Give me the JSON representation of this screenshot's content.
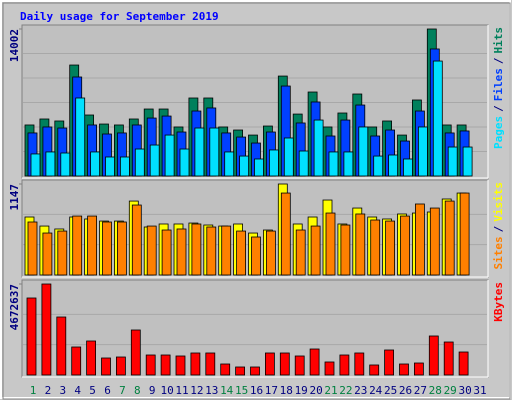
{
  "title": "Daily usage for September 2019",
  "legend_separator": "/",
  "chart_data": [
    {
      "type": "bar",
      "ylim": [
        0,
        14002
      ],
      "yticks": [
        14002
      ],
      "series": [
        {
          "name": "Hits",
          "color": "#00805c",
          "values": [
            4860,
            5430,
            5240,
            10570,
            5810,
            4950,
            4860,
            5430,
            6380,
            6380,
            4670,
            7430,
            7430,
            4670,
            4380,
            3900,
            4760,
            9520,
            5900,
            8000,
            4670,
            6000,
            7810,
            4670,
            5240,
            3900,
            7240,
            14002,
            4860,
            4860,
            null
          ]
        },
        {
          "name": "Files",
          "color": "#0040ff",
          "values": [
            4100,
            4670,
            4570,
            9430,
            4860,
            4000,
            4100,
            4860,
            5520,
            5710,
            4190,
            6190,
            6480,
            4100,
            3710,
            3140,
            4190,
            8570,
            5050,
            7050,
            3810,
            5330,
            6760,
            3810,
            4380,
            3330,
            6190,
            12100,
            4100,
            4290,
            null
          ]
        },
        {
          "name": "Pages",
          "color": "#00e0ff",
          "values": [
            2100,
            2290,
            2190,
            7430,
            2290,
            1810,
            1810,
            2570,
            2950,
            3900,
            2570,
            4570,
            4570,
            2290,
            1900,
            1620,
            2480,
            3620,
            2380,
            5330,
            2290,
            2290,
            4670,
            1900,
            2000,
            1620,
            4670,
            10950,
            2760,
            2760,
            null
          ]
        }
      ]
    },
    {
      "type": "bar",
      "ylim": [
        0,
        1147
      ],
      "yticks": [
        1147
      ],
      "series": [
        {
          "name": "Visits",
          "color": "#ffff00",
          "values": [
            731,
            617,
            580,
            731,
            706,
            680,
            680,
            932,
            605,
            643,
            643,
            655,
            630,
            617,
            643,
            529,
            567,
            1147,
            643,
            731,
            945,
            643,
            844,
            731,
            706,
            769,
            781,
            794,
            958,
            1033,
            null
          ]
        },
        {
          "name": "Sites",
          "color": "#ff8000",
          "values": [
            668,
            529,
            554,
            743,
            743,
            668,
            668,
            882,
            617,
            567,
            580,
            643,
            605,
            617,
            554,
            479,
            554,
            1033,
            567,
            617,
            781,
            630,
            769,
            693,
            680,
            743,
            895,
            844,
            932,
            1033,
            null
          ]
        }
      ]
    },
    {
      "type": "bar",
      "ylim": [
        0,
        4672637
      ],
      "yticks": [
        4672637
      ],
      "categories": [
        "1",
        "2",
        "3",
        "4",
        "5",
        "6",
        "7",
        "8",
        "9",
        "10",
        "11",
        "12",
        "13",
        "14",
        "15",
        "16",
        "17",
        "18",
        "19",
        "20",
        "21",
        "22",
        "23",
        "24",
        "25",
        "26",
        "27",
        "28",
        "29",
        "30",
        "31"
      ],
      "weekend": [
        0,
        6,
        7,
        13,
        14,
        20,
        21,
        27,
        28
      ],
      "weekend_color": "#008040",
      "category_color": "#000080",
      "series": [
        {
          "name": "KBytes",
          "color": "#ff0000",
          "values": [
            3954000,
            4672637,
            2978000,
            1438000,
            1746000,
            873000,
            924000,
            2311000,
            1027000,
            1027000,
            976000,
            1130000,
            1130000,
            565000,
            411000,
            411000,
            1130000,
            1130000,
            976000,
            1335000,
            668000,
            1027000,
            1130000,
            514000,
            1284000,
            565000,
            616000,
            2003000,
            1694000,
            1181000,
            null
          ]
        }
      ]
    }
  ]
}
